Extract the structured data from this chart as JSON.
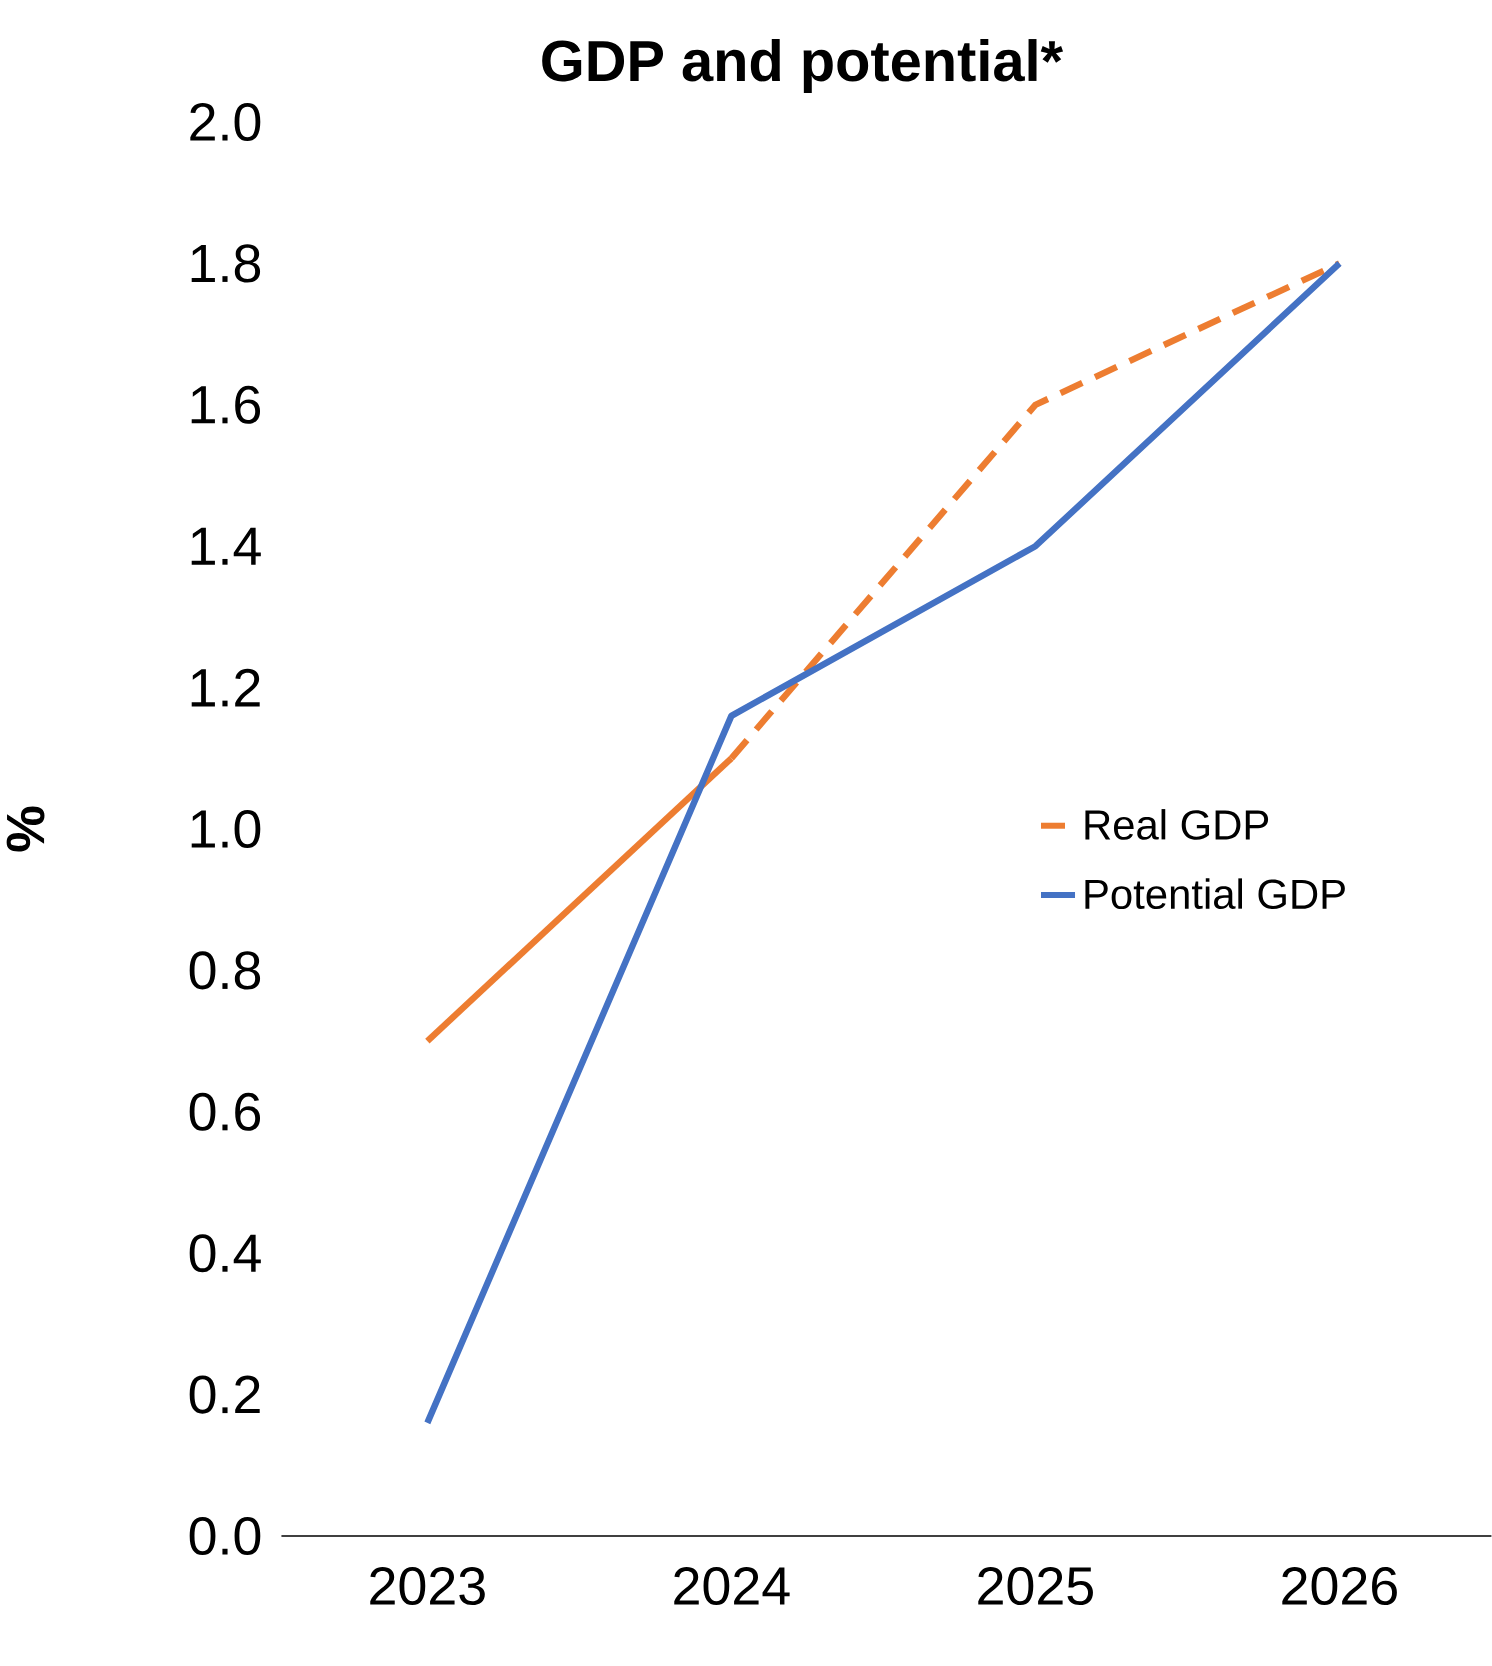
{
  "chart_data": {
    "type": "line",
    "title": "GDP and potential*",
    "ylabel": "%",
    "categories": [
      "2023",
      "2024",
      "2025",
      "2026"
    ],
    "series": [
      {
        "color": "#ed7d31",
        "line_style": "solid",
        "values": [
          0.7,
          1.1,
          null,
          null
        ]
      },
      {
        "name": "Real GDP",
        "color": "#ed7d31",
        "line_style": "dashed",
        "values": [
          null,
          1.1,
          1.6,
          1.8
        ]
      },
      {
        "name": "Potential GDP",
        "color": "#4472c4",
        "line_style": "solid",
        "values": [
          0.16,
          1.16,
          1.4,
          1.8
        ]
      }
    ],
    "ylim": [
      0,
      2
    ],
    "yticks": [
      {
        "value": 0,
        "label": "0.0"
      },
      {
        "value": 0.2,
        "label": "0.2"
      },
      {
        "value": 0.4,
        "label": "0.4"
      },
      {
        "value": 0.6,
        "label": "0.6"
      },
      {
        "value": 0.8,
        "label": "0.8"
      },
      {
        "value": 1,
        "label": "1.0"
      },
      {
        "value": 1.2,
        "label": "1.2"
      },
      {
        "value": 1.4,
        "label": "1.4"
      },
      {
        "value": 1.6,
        "label": "1.6"
      },
      {
        "value": 1.8,
        "label": "1.8"
      },
      {
        "value": 2,
        "label": "2.0"
      }
    ],
    "grid": false,
    "legend": "right",
    "marker": "none"
  }
}
